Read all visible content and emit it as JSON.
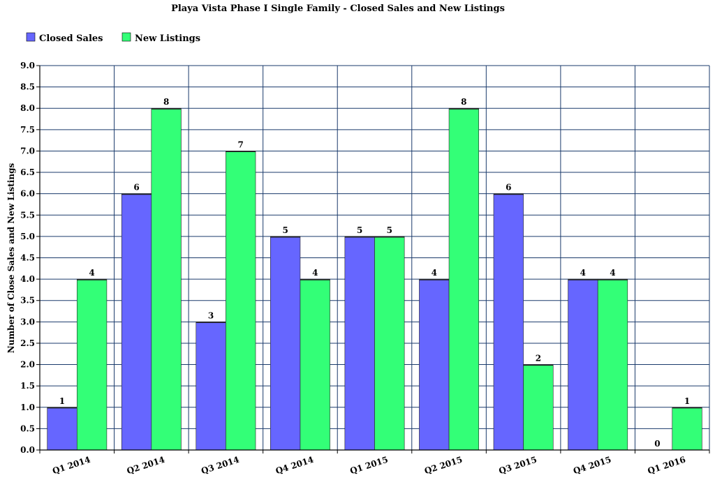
{
  "chart_data": {
    "type": "bar",
    "title": "Playa Vista Phase I Single Family - Closed Sales and New Listings",
    "xlabel": "",
    "ylabel": "Number of Close Sales and New Listings",
    "categories": [
      "Q1 2014",
      "Q2 2014",
      "Q3 2014",
      "Q4 2014",
      "Q1 2015",
      "Q2 2015",
      "Q3 2015",
      "Q4 2015",
      "Q1 2016"
    ],
    "series": [
      {
        "name": "Closed Sales",
        "values": [
          1,
          6,
          3,
          5,
          5,
          4,
          6,
          4,
          0
        ],
        "color": "#6666ff"
      },
      {
        "name": "New Listings",
        "values": [
          4,
          8,
          7,
          4,
          5,
          8,
          2,
          4,
          1
        ],
        "color": "#33ff77"
      }
    ],
    "ylim": [
      0,
      9
    ],
    "ytick_step": 0.5,
    "yticks": [
      "0.0",
      "0.5",
      "1.0",
      "1.5",
      "2.0",
      "2.5",
      "3.0",
      "3.5",
      "4.0",
      "4.5",
      "5.0",
      "5.5",
      "6.0",
      "6.5",
      "7.0",
      "7.5",
      "8.0",
      "8.5",
      "9.0"
    ],
    "grid": true,
    "grid_color": "#1a3a6b",
    "legend_position": "top-left",
    "data_labels": true
  }
}
